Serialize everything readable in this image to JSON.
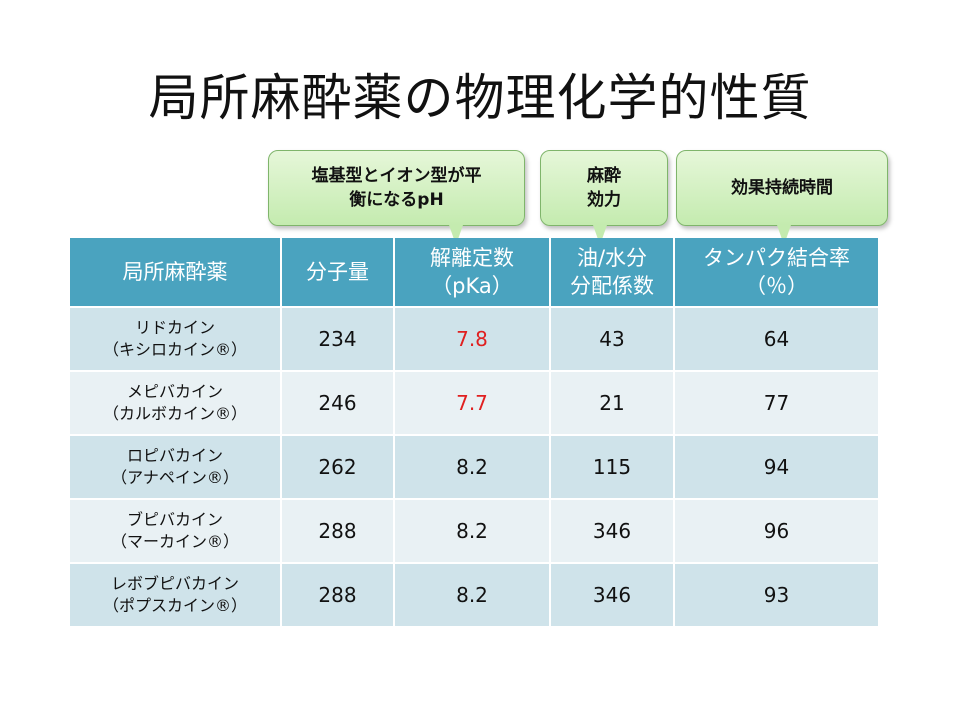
{
  "title": "局所麻酔薬の物理化学的性質",
  "callouts": [
    {
      "text": "塩基型とイオン型が平\n衡になるpH"
    },
    {
      "text": "麻酔\n効力"
    },
    {
      "text": "効果持続時間"
    }
  ],
  "table": {
    "headers": [
      "局所麻酔薬",
      "分子量",
      "解離定数\n（pKa）",
      "油/水分\n分配係数",
      "タンパク結合率\n（％）"
    ],
    "rows": [
      {
        "name": "リドカイン\n（キシロカイン®）",
        "mw": "234",
        "pka": "7.8",
        "partition": "43",
        "binding": "64"
      },
      {
        "name": "メピバカイン\n（カルボカイン®）",
        "mw": "246",
        "pka": "7.7",
        "partition": "21",
        "binding": "77"
      },
      {
        "name": "ロピバカイン\n（アナペイン®）",
        "mw": "262",
        "pka": "8.2",
        "partition": "115",
        "binding": "94"
      },
      {
        "name": "ブピバカイン\n（マーカイン®）",
        "mw": "288",
        "pka": "8.2",
        "partition": "346",
        "binding": "96"
      },
      {
        "name": "レボブピバカイン\n（ポプスカイン®）",
        "mw": "288",
        "pka": "8.2",
        "partition": "346",
        "binding": "93"
      }
    ]
  },
  "colors": {
    "header_bg": "#4aa3bf",
    "row_dark": "#cfe3ea",
    "row_light": "#e9f1f4",
    "highlight_text": "#e02020",
    "callout_fill": "#c4ebaf"
  }
}
